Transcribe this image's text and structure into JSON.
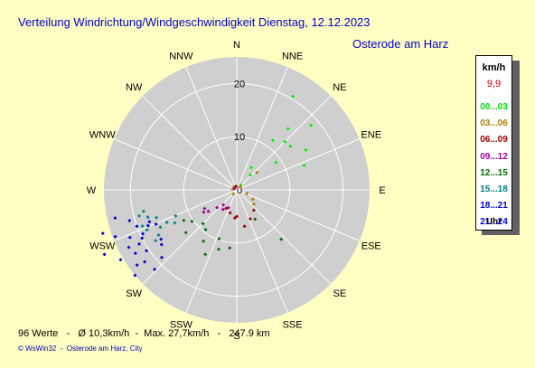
{
  "header": {
    "title": "Verteilung Windrichtung/Windgeschwindigkeit  Dienstag, 12.12.2023",
    "location": "Osterode am Harz"
  },
  "colors": {
    "background": "#ffffc4",
    "title_text": "#0000d0",
    "rose_fill": "#cfcfcf",
    "rose_lines": "#ffffff"
  },
  "chart_data": {
    "type": "scatter",
    "subtype": "wind-rose",
    "title": "Verteilung Windrichtung/Windgeschwindigkeit  Dienstag, 12.12.2023",
    "radial_axis": {
      "range": [
        0,
        25
      ],
      "ticks": [
        "0",
        "10",
        "20"
      ],
      "tick_values": [
        0,
        10,
        20
      ],
      "unit": "km/h",
      "grid": true
    },
    "directions": [
      "N",
      "NNE",
      "NE",
      "ENE",
      "E",
      "ESE",
      "SE",
      "SSE",
      "S",
      "SSW",
      "SW",
      "WSW",
      "W",
      "WNW",
      "NW",
      "NNW"
    ],
    "series": [
      {
        "name": "00...03",
        "color": "#00f000",
        "points": [
          {
            "dir": 31,
            "speed": 20.5
          },
          {
            "dir": 40,
            "speed": 15.0
          },
          {
            "dir": 49,
            "speed": 18.5
          },
          {
            "dir": 51,
            "speed": 13.0
          },
          {
            "dir": 45,
            "speed": 12.8
          },
          {
            "dir": 36,
            "speed": 11.5
          },
          {
            "dir": 60,
            "speed": 15.0
          },
          {
            "dir": 70,
            "speed": 13.5
          },
          {
            "dir": 55,
            "speed": 9.0
          },
          {
            "dir": 33,
            "speed": 5.0
          },
          {
            "dir": 42,
            "speed": 3.8
          },
          {
            "dir": 38,
            "speed": 1.2
          }
        ]
      },
      {
        "name": "03...06",
        "color": "#b08000",
        "points": [
          {
            "dir": 49,
            "speed": 5.0
          },
          {
            "dir": 120,
            "speed": 3.5
          },
          {
            "dir": 130,
            "speed": 4.2
          },
          {
            "dir": 110,
            "speed": 2.0
          },
          {
            "dir": 50,
            "speed": 0.9
          },
          {
            "dir": 220,
            "speed": 1.0
          },
          {
            "dir": 280,
            "speed": 0.8
          },
          {
            "dir": 320,
            "speed": 0.8
          }
        ]
      },
      {
        "name": "06...09",
        "color": "#a00000",
        "points": [
          {
            "dir": 184,
            "speed": 5.3
          },
          {
            "dir": 180,
            "speed": 5.0
          },
          {
            "dir": 210,
            "speed": 4.0
          },
          {
            "dir": 140,
            "speed": 5.0
          },
          {
            "dir": 155,
            "speed": 6.0
          },
          {
            "dir": 168,
            "speed": 7.0
          },
          {
            "dir": 196,
            "speed": 4.5
          },
          {
            "dir": 350,
            "speed": 0.7
          },
          {
            "dir": 300,
            "speed": 0.5
          }
        ]
      },
      {
        "name": "09...12",
        "color": "#a000a0",
        "points": [
          {
            "dir": 222,
            "speed": 3.8
          },
          {
            "dir": 215,
            "speed": 4.5
          },
          {
            "dir": 228,
            "speed": 5.0
          },
          {
            "dir": 205,
            "speed": 3.7
          },
          {
            "dir": 233,
            "speed": 6.7
          },
          {
            "dir": 236,
            "speed": 7.5
          },
          {
            "dir": 240,
            "speed": 7.0
          },
          {
            "dir": 315,
            "speed": 0.5
          }
        ]
      },
      {
        "name": "12...15",
        "color": "#007000",
        "points": [
          {
            "dir": 148,
            "speed": 6.5
          },
          {
            "dir": 138,
            "speed": 12.5
          },
          {
            "dir": 218,
            "speed": 9.5
          },
          {
            "dir": 225,
            "speed": 9.0
          },
          {
            "dir": 213,
            "speed": 11.5
          },
          {
            "dir": 206,
            "speed": 13.5
          },
          {
            "dir": 197,
            "speed": 11.7
          },
          {
            "dir": 235,
            "speed": 10.3
          },
          {
            "dir": 230,
            "speed": 12.5
          },
          {
            "dir": 187,
            "speed": 11.0
          },
          {
            "dir": 200,
            "speed": 9.8
          },
          {
            "dir": 240,
            "speed": 11.5
          }
        ]
      },
      {
        "name": "15...18",
        "color": "#008080",
        "points": [
          {
            "dir": 240,
            "speed": 17.0
          },
          {
            "dir": 244,
            "speed": 16.0
          },
          {
            "dir": 246,
            "speed": 18.5
          },
          {
            "dir": 249,
            "speed": 19.0
          },
          {
            "dir": 251,
            "speed": 16.0
          },
          {
            "dir": 245,
            "speed": 14.5
          },
          {
            "dir": 242,
            "speed": 13.2
          },
          {
            "dir": 253,
            "speed": 17.5
          },
          {
            "dir": 255,
            "speed": 19.0
          },
          {
            "dir": 247,
            "speed": 12.5
          },
          {
            "dir": 257,
            "speed": 18.0
          },
          {
            "dir": 238,
            "speed": 18.0
          }
        ]
      },
      {
        "name": "18...21",
        "color": "#0000d0",
        "points": [
          {
            "dir": 244,
            "speed": 27.7
          },
          {
            "dir": 249,
            "speed": 24.5
          },
          {
            "dir": 252,
            "speed": 26.5
          },
          {
            "dir": 236,
            "speed": 20.5
          },
          {
            "dir": 233,
            "speed": 23.5
          },
          {
            "dir": 238,
            "speed": 22.5
          },
          {
            "dir": 241,
            "speed": 21.0
          },
          {
            "dir": 243,
            "speed": 20.0
          },
          {
            "dir": 246,
            "speed": 22.0
          },
          {
            "dir": 232,
            "speed": 22.0
          },
          {
            "dir": 239,
            "speed": 25.5
          },
          {
            "dir": 250,
            "speed": 20.0
          },
          {
            "dir": 228,
            "speed": 19.0
          },
          {
            "dir": 234,
            "speed": 17.5
          },
          {
            "dir": 230,
            "speed": 25.0
          },
          {
            "dir": 237,
            "speed": 17.0
          },
          {
            "dir": 242,
            "speed": 23.0
          },
          {
            "dir": 247,
            "speed": 16.5
          },
          {
            "dir": 257,
            "speed": 23.5
          },
          {
            "dir": 226,
            "speed": 21.5
          },
          {
            "dir": 248,
            "speed": 18.0
          },
          {
            "dir": 254,
            "speed": 21.0
          }
        ]
      },
      {
        "name": "21...24",
        "color": "#0000ff",
        "points": [
          {
            "dir": 250,
            "speed": 17.5
          },
          {
            "dir": 245,
            "speed": 19.5
          }
        ]
      }
    ]
  },
  "legend": {
    "unit": "km/h",
    "current_value": "9,9",
    "current_color": "#c00000",
    "ranges": [
      {
        "label": "00...03",
        "color": "#00e000"
      },
      {
        "label": "03...06",
        "color": "#b08000"
      },
      {
        "label": "06...09",
        "color": "#a00000"
      },
      {
        "label": "09...12",
        "color": "#a000a0"
      },
      {
        "label": "12...15",
        "color": "#007000"
      },
      {
        "label": "15...18",
        "color": "#008080"
      },
      {
        "label": "18...21",
        "color": "#0000d0"
      },
      {
        "label": "21...24",
        "color": "#0000ff"
      }
    ],
    "footer_unit": "Uhr"
  },
  "footer": {
    "stats": "96 Werte   -   Ø 10,3km/h  -  Max. 27,7km/h   -   247.9 km",
    "credit": "© WsWin32  -  Osterode am Harz, City"
  }
}
